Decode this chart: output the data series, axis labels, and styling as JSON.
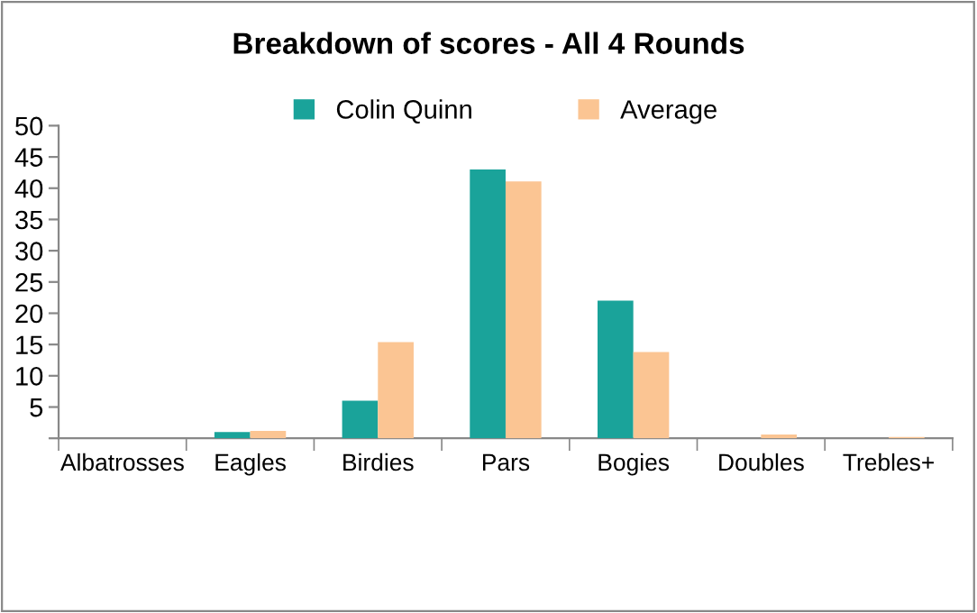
{
  "chart_data": {
    "type": "bar",
    "title": "Breakdown of scores - All 4 Rounds",
    "categories": [
      "Albatrosses",
      "Eagles",
      "Birdies",
      "Pars",
      "Bogies",
      "Doubles",
      "Trebles+"
    ],
    "series": [
      {
        "name": "Colin Quinn",
        "color": "#1aa39a",
        "values": [
          0,
          1,
          6,
          43,
          22,
          0,
          0
        ]
      },
      {
        "name": "Average",
        "color": "#fbc593",
        "values": [
          0,
          1.2,
          15.4,
          41.1,
          13.8,
          0.6,
          0.2
        ]
      }
    ],
    "ylim": [
      0,
      50
    ],
    "yticks": [
      {
        "value": 0,
        "label": null
      },
      5,
      10,
      15,
      20,
      25,
      30,
      35,
      40,
      45,
      50
    ],
    "grid": false,
    "legend": "top"
  }
}
